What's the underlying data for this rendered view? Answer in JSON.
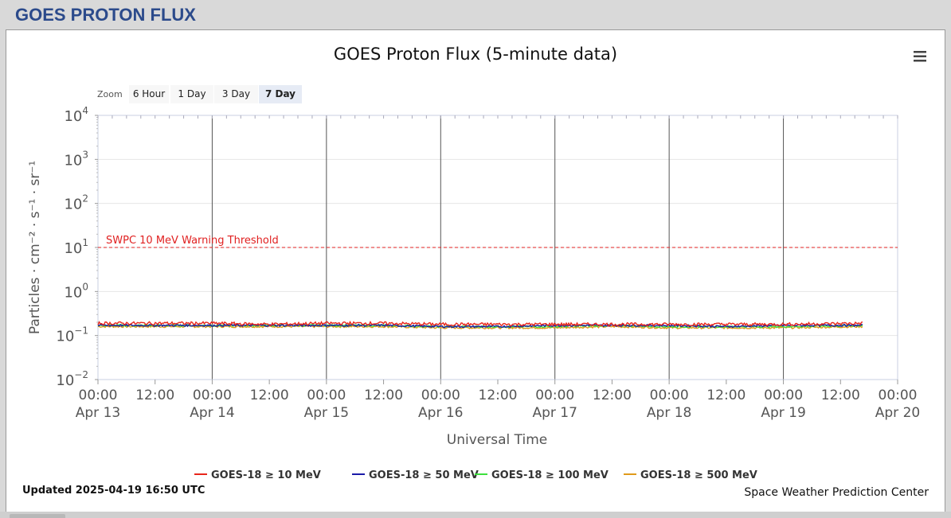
{
  "page": {
    "header_title": "GOES PROTON FLUX"
  },
  "chart": {
    "menu_icon": "hamburger-menu-icon",
    "zoom": {
      "label": "Zoom",
      "buttons": [
        "6 Hour",
        "1 Day",
        "3 Day",
        "7 Day"
      ],
      "selected": "7 Day"
    },
    "updated_text": "Updated 2025-04-19 16:50 UTC",
    "credit_text": "Space Weather Prediction Center",
    "threshold": {
      "label": "SWPC 10 MeV Warning Threshold",
      "value": 10,
      "color": "#e02020"
    }
  },
  "chart_data": {
    "type": "line",
    "title": "GOES Proton Flux (5-minute data)",
    "xlabel": "Universal Time",
    "ylabel": "Particles · cm⁻² · s⁻¹ · sr⁻¹",
    "y_scale": "log",
    "ylim": [
      0.01,
      10000
    ],
    "xlim": [
      "2025-04-13 00:00",
      "2025-04-20 00:00"
    ],
    "grid": true,
    "legend_position": "bottom-center",
    "y_ticks": [
      {
        "base": "10",
        "exp": "4"
      },
      {
        "base": "10",
        "exp": "3"
      },
      {
        "base": "10",
        "exp": "2"
      },
      {
        "base": "10",
        "exp": "1"
      },
      {
        "base": "10",
        "exp": "0"
      },
      {
        "base": "10",
        "exp": "−1"
      },
      {
        "base": "10",
        "exp": "−2"
      }
    ],
    "x_ticks": [
      {
        "time": "00:00",
        "date": "Apr 13"
      },
      {
        "time": "12:00",
        "date": ""
      },
      {
        "time": "00:00",
        "date": "Apr 14"
      },
      {
        "time": "12:00",
        "date": ""
      },
      {
        "time": "00:00",
        "date": "Apr 15"
      },
      {
        "time": "12:00",
        "date": ""
      },
      {
        "time": "00:00",
        "date": "Apr 16"
      },
      {
        "time": "12:00",
        "date": ""
      },
      {
        "time": "00:00",
        "date": "Apr 17"
      },
      {
        "time": "12:00",
        "date": ""
      },
      {
        "time": "00:00",
        "date": "Apr 18"
      },
      {
        "time": "12:00",
        "date": ""
      },
      {
        "time": "00:00",
        "date": "Apr 19"
      },
      {
        "time": "12:00",
        "date": ""
      },
      {
        "time": "00:00",
        "date": "Apr 20"
      }
    ],
    "x": [
      "2025-04-13 00:00",
      "2025-04-13 12:00",
      "2025-04-14 00:00",
      "2025-04-14 12:00",
      "2025-04-15 00:00",
      "2025-04-15 12:00",
      "2025-04-16 00:00",
      "2025-04-16 12:00",
      "2025-04-17 00:00",
      "2025-04-17 12:00",
      "2025-04-18 00:00",
      "2025-04-18 12:00",
      "2025-04-19 00:00",
      "2025-04-19 16:50"
    ],
    "series": [
      {
        "name": "GOES-18 ≥ 10 MeV",
        "color": "#e8261b",
        "values": [
          0.19,
          0.19,
          0.19,
          0.18,
          0.19,
          0.19,
          0.18,
          0.18,
          0.18,
          0.18,
          0.18,
          0.18,
          0.18,
          0.19
        ]
      },
      {
        "name": "GOES-18 ≥ 50 MeV",
        "color": "#1a1aa8",
        "values": [
          0.17,
          0.17,
          0.17,
          0.17,
          0.17,
          0.17,
          0.16,
          0.16,
          0.17,
          0.17,
          0.17,
          0.16,
          0.17,
          0.17
        ]
      },
      {
        "name": "GOES-18 ≥ 100 MeV",
        "color": "#3de03d",
        "values": [
          0.17,
          0.17,
          0.17,
          0.17,
          0.17,
          0.17,
          0.16,
          0.16,
          0.16,
          0.17,
          0.16,
          0.16,
          0.16,
          0.17
        ]
      },
      {
        "name": "GOES-18 ≥ 500 MeV",
        "color": "#e09a1a",
        "values": [
          0.16,
          0.16,
          0.16,
          0.16,
          0.16,
          0.16,
          0.15,
          0.15,
          0.15,
          0.16,
          0.15,
          0.15,
          0.15,
          0.16
        ]
      }
    ]
  }
}
